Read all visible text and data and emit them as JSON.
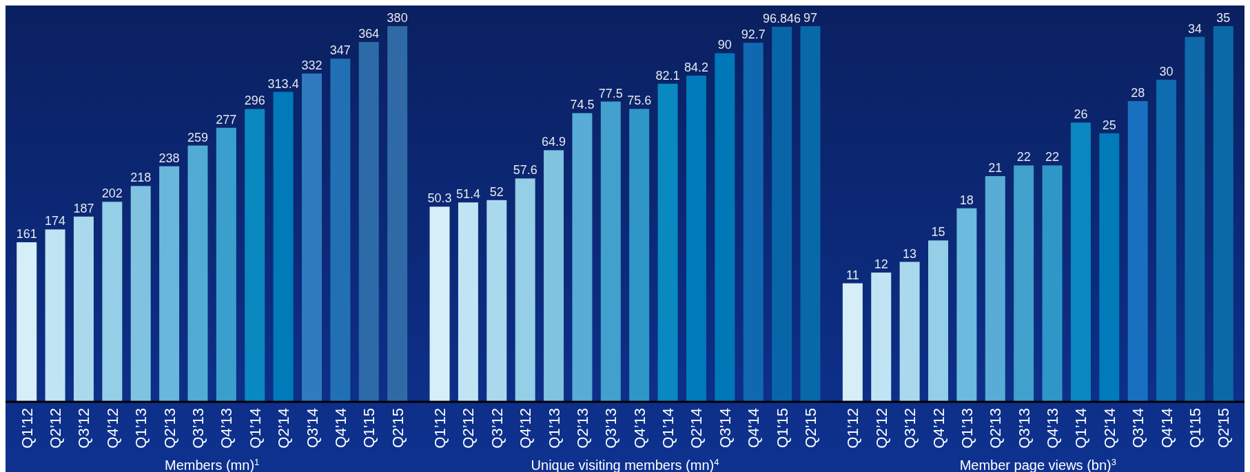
{
  "chart_data": [
    {
      "type": "bar",
      "xlabel": "Members (mn)$^{1}$",
      "categories": [
        "Q1’12",
        "Q2’12",
        "Q3’12",
        "Q4’12",
        "Q1’13",
        "Q2’13",
        "Q3’13",
        "Q4’13",
        "Q1’14",
        "Q2’14",
        "Q3'14",
        "Q4'14",
        "Q1'15",
        "Q2'15"
      ],
      "values": [
        161,
        174,
        187,
        202,
        218,
        238,
        259,
        277,
        296,
        313.4,
        332,
        347,
        364,
        380
      ],
      "colors": [
        "#d6eef8",
        "#c0e4f3",
        "#aad9ed",
        "#94cee7",
        "#7fc3e1",
        "#69b7da",
        "#52abd4",
        "#3a9fcd",
        "#0a88c0",
        "#007ab9",
        "#2f7bbd",
        "#2270b4",
        "#2d6aa8",
        "#2f6aa6"
      ],
      "data_labels": true
    },
    {
      "type": "bar",
      "xlabel": "Unique visiting members (mn)$^{4}$",
      "categories": [
        "Q1’12",
        "Q2’12",
        "Q3’12",
        "Q4’12",
        "Q1’13",
        "Q2’13",
        "Q3’13",
        "Q4’13",
        "Q1’14",
        "Q2’14",
        "Q3'14",
        "Q4'14",
        "Q1'15",
        "Q2'15"
      ],
      "values": [
        50.3,
        51.4,
        52,
        57.6,
        64.9,
        74.5,
        77.5,
        75.6,
        82.1,
        84.2,
        90,
        92.7,
        96.846,
        97
      ],
      "colors": [
        "#d6eef8",
        "#c0e4f3",
        "#aad9ed",
        "#94cee7",
        "#7fc3e1",
        "#58acd6",
        "#41a0cc",
        "#2f96c8",
        "#0a88c0",
        "#007ab9",
        "#0077b6",
        "#1068b0",
        "#0866a8",
        "#0868a8"
      ],
      "data_labels": true
    },
    {
      "type": "bar",
      "xlabel": "Member page views (bn)$^{3}$",
      "categories": [
        "Q1’12",
        "Q2’12",
        "Q3’12",
        "Q4’12",
        "Q1’13",
        "Q2’13",
        "Q3’13",
        "Q4’13",
        "Q1’14",
        "Q2’14",
        "Q3'14",
        "Q4'14",
        "Q1'15",
        "Q2'15"
      ],
      "values": [
        11,
        12,
        13,
        15,
        18,
        21,
        22,
        22,
        26,
        25,
        28,
        30,
        34,
        35
      ],
      "colors": [
        "#d6eef8",
        "#c0e4f3",
        "#aad9ed",
        "#94cee7",
        "#6cbadd",
        "#58acd6",
        "#41a0cc",
        "#2f96c8",
        "#0a88c0",
        "#007ab9",
        "#1a70c0",
        "#106cb0",
        "#0e6aa8",
        "#0a6aa8"
      ],
      "data_labels": true
    }
  ]
}
